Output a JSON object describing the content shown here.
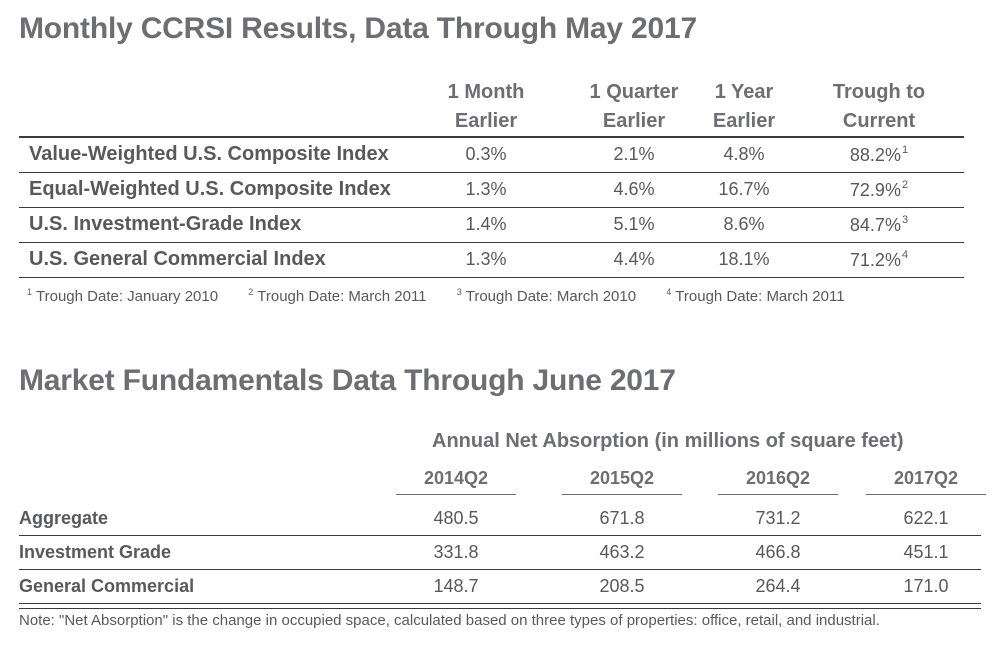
{
  "section1": {
    "title": "Monthly CCRSI Results, Data Through May 2017",
    "columns": [
      {
        "line1": "1 Month",
        "line2": "Earlier"
      },
      {
        "line1": "1 Quarter",
        "line2": "Earlier"
      },
      {
        "line1": "1 Year",
        "line2": "Earlier"
      },
      {
        "line1": "Trough to",
        "line2": "Current"
      }
    ],
    "rows": [
      {
        "label": "Value-Weighted U.S. Composite Index",
        "m1": "0.3%",
        "q1": "2.1%",
        "y1": "4.8%",
        "trough": "88.2%",
        "sup": "1"
      },
      {
        "label": "Equal-Weighted U.S. Composite Index",
        "m1": "1.3%",
        "q1": "4.6%",
        "y1": "16.7%",
        "trough": "72.9%",
        "sup": "2"
      },
      {
        "label": "U.S. Investment-Grade Index",
        "m1": "1.4%",
        "q1": "5.1%",
        "y1": "8.6%",
        "trough": "84.7%",
        "sup": "3"
      },
      {
        "label": "U.S. General Commercial Index",
        "m1": "1.3%",
        "q1": "4.4%",
        "y1": "18.1%",
        "trough": "71.2%",
        "sup": "4"
      }
    ],
    "footnotes": [
      {
        "num": "1",
        "text": "Trough Date: January 2010"
      },
      {
        "num": "2",
        "text": "Trough Date: March 2011"
      },
      {
        "num": "3",
        "text": "Trough Date: March 2010"
      },
      {
        "num": "4",
        "text": "Trough Date: March 2011"
      }
    ]
  },
  "section2": {
    "title": "Market Fundamentals Data Through June 2017",
    "subheading": "Annual Net Absorption (in millions of square feet)",
    "columns": [
      "2014Q2",
      "2015Q2",
      "2016Q2",
      "2017Q2"
    ],
    "rows": [
      {
        "label": "Aggregate",
        "values": [
          "480.5",
          "671.8",
          "731.2",
          "622.1"
        ]
      },
      {
        "label": "Investment Grade",
        "values": [
          "331.8",
          "463.2",
          "466.8",
          "451.1"
        ]
      },
      {
        "label": "General Commercial",
        "values": [
          "148.7",
          "208.5",
          "264.4",
          "171.0"
        ]
      }
    ],
    "note": "Note: \"Net Absorption\" is the change in occupied space, calculated based on three types of properties: office, retail, and industrial."
  }
}
